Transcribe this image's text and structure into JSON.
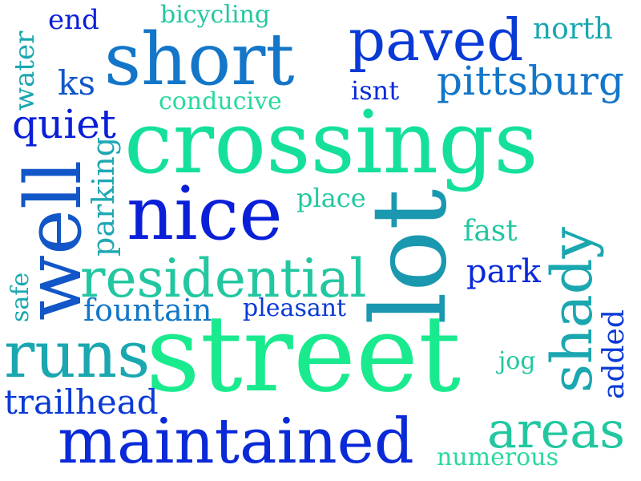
{
  "words": [
    {
      "text": "end",
      "color": "#0a1fd8"
    },
    {
      "text": "bicycling",
      "color": "#22c7a0"
    },
    {
      "text": "north",
      "color": "#1aa7b0"
    },
    {
      "text": "water",
      "color": "#1aa7b0"
    },
    {
      "text": "short",
      "color": "#1476c8"
    },
    {
      "text": "paved",
      "color": "#0a3ad6"
    },
    {
      "text": "ks",
      "color": "#1256c8"
    },
    {
      "text": "isnt",
      "color": "#0a2ad8"
    },
    {
      "text": "pittsburg",
      "color": "#1476c8"
    },
    {
      "text": "conducive",
      "color": "#2ad8a0"
    },
    {
      "text": "quiet",
      "color": "#0a1fd8"
    },
    {
      "text": "crossings",
      "color": "#14e09a"
    },
    {
      "text": "well",
      "color": "#1256c8"
    },
    {
      "text": "parking",
      "color": "#20a8b4"
    },
    {
      "text": "nice",
      "color": "#0a1fd8"
    },
    {
      "text": "place",
      "color": "#22c7a0"
    },
    {
      "text": "lot",
      "color": "#1a98b0"
    },
    {
      "text": "fast",
      "color": "#22c7a0"
    },
    {
      "text": "shady",
      "color": "#1aa7b0"
    },
    {
      "text": "residential",
      "color": "#22c7a0"
    },
    {
      "text": "park",
      "color": "#0a2ad8"
    },
    {
      "text": "safe",
      "color": "#1aa7b0"
    },
    {
      "text": "fountain",
      "color": "#1476c8"
    },
    {
      "text": "pleasant",
      "color": "#0a3ad6"
    },
    {
      "text": "added",
      "color": "#0a3ad6"
    },
    {
      "text": "runs",
      "color": "#1aa7b0"
    },
    {
      "text": "street",
      "color": "#1aea8e"
    },
    {
      "text": "jog",
      "color": "#22c7a0"
    },
    {
      "text": "trailhead",
      "color": "#0a3ad6"
    },
    {
      "text": "maintained",
      "color": "#0a2ad8"
    },
    {
      "text": "areas",
      "color": "#22c7a0"
    },
    {
      "text": "numerous",
      "color": "#2ad8a0"
    }
  ]
}
